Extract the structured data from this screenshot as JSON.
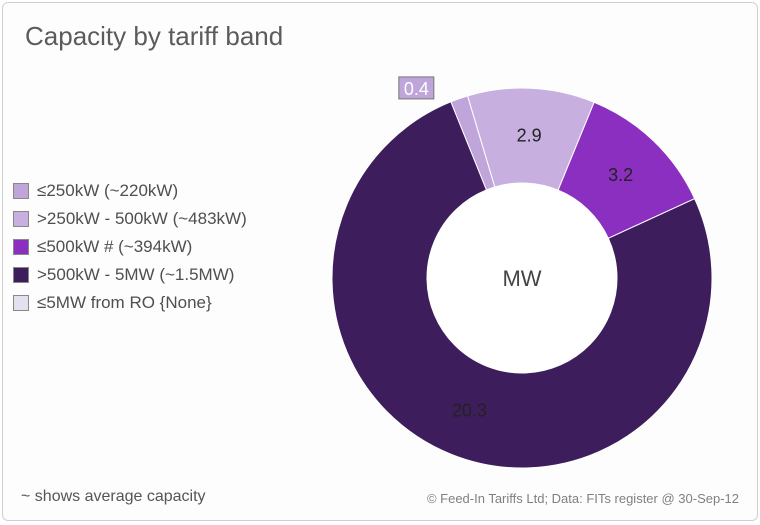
{
  "title": "Capacity by tariff band",
  "center_label": "MW",
  "footnote_left": "~ shows average capacity",
  "footnote_right": "© Feed-In Tariffs Ltd; Data: FITs register @ 30-Sep-12",
  "chart": {
    "type": "donut",
    "unit": "MW",
    "background_color": "#fdfdfd",
    "border_color": "#cfcfcf",
    "title_fontsize": 26,
    "legend_fontsize": 17,
    "center_fontsize": 22,
    "datalabel_fontsize": 18,
    "datalabel_color": "#222222",
    "inner_radius_ratio": 0.5,
    "start_angle_deg": -22,
    "segments": [
      {
        "key": "lte250",
        "label": "≤250kW  (~220kW)",
        "value": 0.4,
        "color": "#bfa5d9",
        "show_label": true,
        "label_on_white": true
      },
      {
        "key": "250_500",
        "label": ">250kW - 500kW  (~483kW)",
        "value": 2.9,
        "color": "#c7b0e0",
        "show_label": true,
        "label_on_white": false
      },
      {
        "key": "lte500h",
        "label": "≤500kW #   (~394kW)",
        "value": 3.2,
        "color": "#8a2fc0",
        "show_label": true,
        "label_on_white": false
      },
      {
        "key": "500_5mw",
        "label": ">500kW - 5MW  (~1.5MW)",
        "value": 20.3,
        "color": "#3d1d5c",
        "show_label": true,
        "label_on_white": false
      },
      {
        "key": "5mw_ro",
        "label": "≤5MW from RO  {None}",
        "value": 0.0,
        "color": "#e5e0ef",
        "show_label": false,
        "label_on_white": false
      }
    ]
  }
}
